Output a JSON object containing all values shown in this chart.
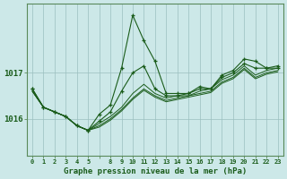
{
  "background_color": "#cce8e8",
  "grid_color": "#9bbfbf",
  "line_color": "#1a5c1a",
  "title": "Graphe pression niveau de la mer (hPa)",
  "ylim": [
    1015.2,
    1018.5
  ],
  "yticks": [
    1016,
    1017
  ],
  "x_positions": [
    0,
    1,
    2,
    3,
    4,
    5,
    7,
    8,
    9,
    10,
    11,
    12,
    13,
    14,
    15,
    16,
    17,
    18,
    19,
    20,
    21,
    22,
    23
  ],
  "x_labels": [
    "0",
    "1",
    "2",
    "3",
    "4",
    "5",
    "",
    "8",
    "9",
    "10",
    "11",
    "12",
    "13",
    "14",
    "15",
    "16",
    "17",
    "18",
    "19",
    "20",
    "21",
    "22",
    "23"
  ],
  "series_no_marker": [
    [
      1016.6,
      1016.25,
      1016.15,
      1016.05,
      1015.85,
      1015.75,
      1015.9,
      1016.05,
      1016.25,
      1016.55,
      1016.75,
      1016.55,
      1016.45,
      1016.5,
      1016.5,
      1016.6,
      1016.65,
      1016.85,
      1016.95,
      1017.15,
      1016.95,
      1017.05,
      1017.1
    ],
    [
      1016.6,
      1016.25,
      1016.15,
      1016.05,
      1015.85,
      1015.75,
      1015.85,
      1016.0,
      1016.2,
      1016.45,
      1016.65,
      1016.5,
      1016.4,
      1016.45,
      1016.5,
      1016.55,
      1016.6,
      1016.8,
      1016.9,
      1017.1,
      1016.9,
      1017.0,
      1017.05
    ],
    [
      1016.6,
      1016.25,
      1016.15,
      1016.05,
      1015.85,
      1015.75,
      1015.82,
      1015.97,
      1016.17,
      1016.42,
      1016.62,
      1016.47,
      1016.37,
      1016.42,
      1016.47,
      1016.52,
      1016.57,
      1016.77,
      1016.87,
      1017.07,
      1016.87,
      1016.97,
      1017.02
    ]
  ],
  "series_with_marker": [
    [
      1016.65,
      1016.25,
      1016.15,
      1016.05,
      1015.85,
      1015.75,
      1016.1,
      1016.3,
      1017.1,
      1018.25,
      1017.7,
      1017.25,
      1016.55,
      1016.55,
      1016.55,
      1016.7,
      1016.65,
      1016.95,
      1017.05,
      1017.3,
      1017.25,
      1017.1,
      1017.15
    ],
    [
      1016.65,
      1016.25,
      1016.15,
      1016.05,
      1015.85,
      1015.75,
      1015.95,
      1016.15,
      1016.6,
      1017.0,
      1017.15,
      1016.65,
      1016.5,
      1016.5,
      1016.55,
      1016.65,
      1016.65,
      1016.9,
      1017.0,
      1017.2,
      1017.1,
      1017.1,
      1017.1
    ]
  ]
}
